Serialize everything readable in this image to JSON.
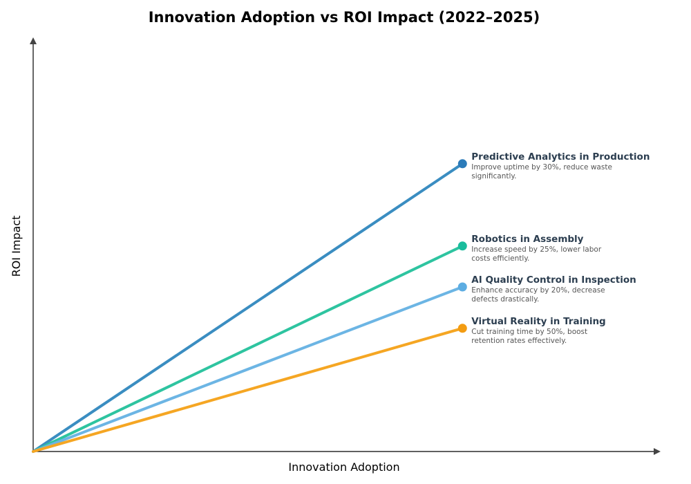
{
  "chart_data": {
    "type": "line",
    "title": "Innovation Adoption vs ROI Impact (2022–2025)",
    "xlabel": "Innovation Adoption",
    "ylabel": "ROI Impact",
    "xlim": [
      0,
      1
    ],
    "ylim": [
      0,
      1
    ],
    "grid": false,
    "ticks": false,
    "series": [
      {
        "name": "Predictive Analytics in Production",
        "desc": [
          "Improve uptime by 30%, reduce waste",
          "significantly."
        ],
        "x": [
          0,
          0.685
        ],
        "y": [
          0,
          0.696
        ],
        "line_color": "#3a8dc1",
        "marker_color": "#2b7bb9"
      },
      {
        "name": "Robotics in Assembly",
        "desc": [
          "Increase speed by 25%, lower labor",
          "costs efficiently."
        ],
        "x": [
          0,
          0.685
        ],
        "y": [
          0,
          0.497
        ],
        "line_color": "#2ec4a0",
        "marker_color": "#1abc9c"
      },
      {
        "name": "AI Quality Control in Inspection",
        "desc": [
          "Enhance accuracy by 20%, decrease",
          "defects drastically."
        ],
        "x": [
          0,
          0.685
        ],
        "y": [
          0,
          0.398
        ],
        "line_color": "#6cb5e4",
        "marker_color": "#5dade2"
      },
      {
        "name": "Virtual Reality in Training",
        "desc": [
          "Cut training time by 50%, boost",
          "retention rates effectively."
        ],
        "x": [
          0,
          0.685
        ],
        "y": [
          0,
          0.298
        ],
        "line_color": "#f5a623",
        "marker_color": "#f39c12"
      }
    ]
  }
}
